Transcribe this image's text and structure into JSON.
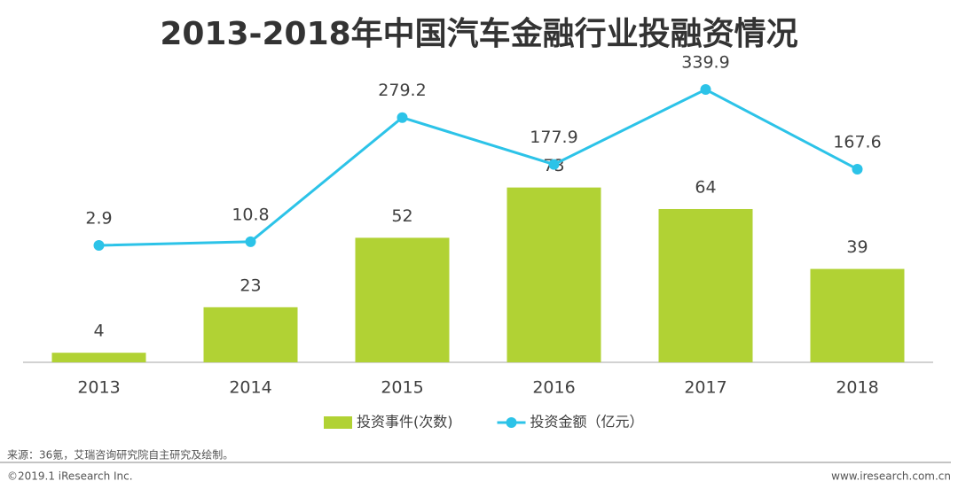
{
  "chart_data": {
    "type": "bar",
    "title": "2013-2018年中国汽车金融行业投融资情况",
    "categories": [
      "2013",
      "2014",
      "2015",
      "2016",
      "2017",
      "2018"
    ],
    "series": [
      {
        "name": "投资事件(次数)",
        "type": "bar",
        "color": "#b1d234",
        "values": [
          4,
          23,
          52,
          73,
          64,
          39
        ]
      },
      {
        "name": "投资金额（亿元）",
        "type": "line",
        "axis": "y2",
        "color": "#2cc3e8",
        "values": [
          2.9,
          10.8,
          279.2,
          177.9,
          339.9,
          167.6
        ]
      }
    ],
    "ylim": [
      0,
      118
    ],
    "y2lim": [
      -250,
      361
    ],
    "legend": "bottom"
  },
  "footer": {
    "source": "来源：36氪，艾瑞咨询研究院自主研究及绘制。",
    "copyright": "©2019.1 iResearch Inc.",
    "website": "www.iresearch.com.cn"
  }
}
